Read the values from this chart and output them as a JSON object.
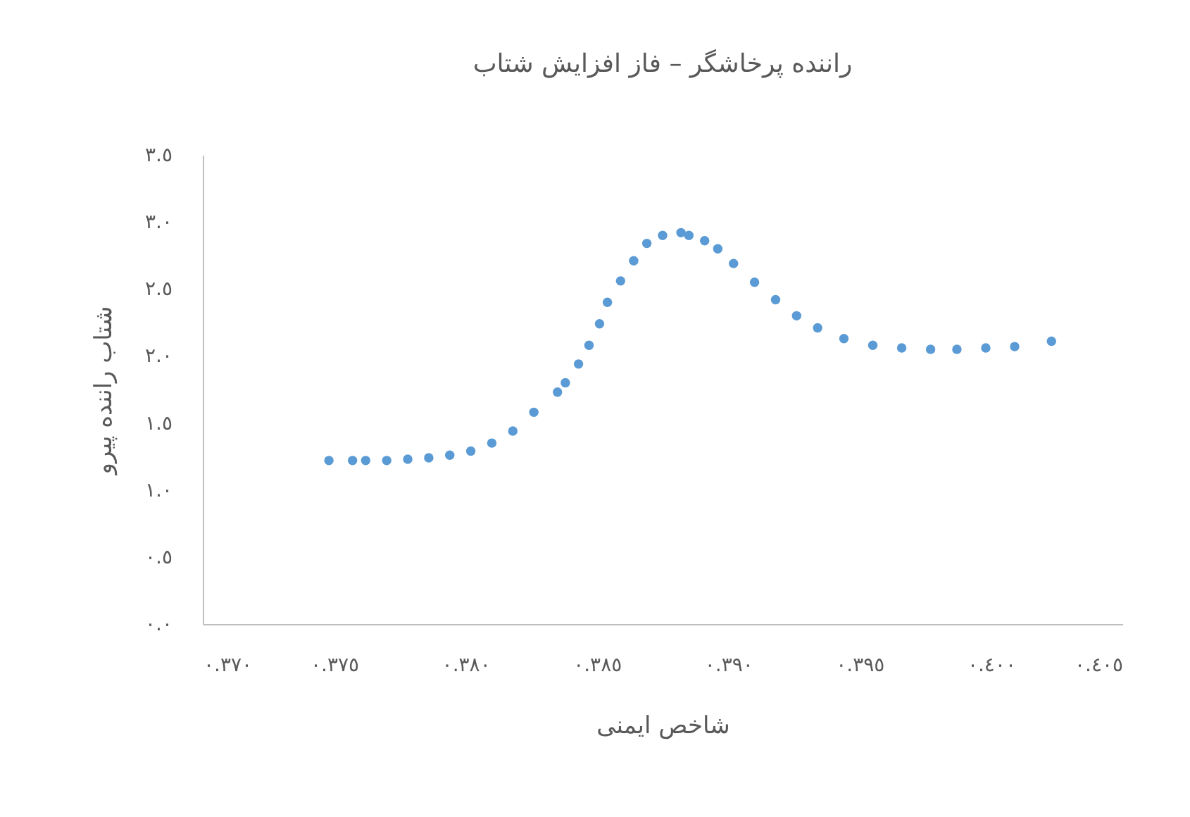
{
  "chart_data": {
    "type": "scatter",
    "title": "راننده پرخاشگر – فاز افزایش شتاب",
    "xlabel": "شاخص ایمنی",
    "ylabel": "شتاب راننده پیرو",
    "marker": "circle",
    "grid": false,
    "x": [
      0.3748,
      0.3757,
      0.3762,
      0.377,
      0.3778,
      0.3786,
      0.3794,
      0.3802,
      0.381,
      0.3818,
      0.3826,
      0.3835,
      0.3838,
      0.3843,
      0.3847,
      0.3851,
      0.3854,
      0.3859,
      0.3864,
      0.3869,
      0.3875,
      0.3882,
      0.3885,
      0.3891,
      0.3896,
      0.3902,
      0.391,
      0.3918,
      0.3926,
      0.3934,
      0.3944,
      0.3955,
      0.3966,
      0.3977,
      0.3987,
      0.3998,
      0.4009,
      0.4023
    ],
    "series": [
      {
        "color": "#5b9bd5",
        "values": [
          1.22,
          1.22,
          1.22,
          1.22,
          1.23,
          1.24,
          1.26,
          1.29,
          1.35,
          1.44,
          1.58,
          1.73,
          1.8,
          1.94,
          2.08,
          2.24,
          2.4,
          2.56,
          2.71,
          2.84,
          2.9,
          2.92,
          2.9,
          2.86,
          2.8,
          2.69,
          2.55,
          2.42,
          2.3,
          2.21,
          2.13,
          2.08,
          2.06,
          2.05,
          2.05,
          2.06,
          2.07,
          2.11
        ]
      }
    ],
    "xlim": [
      0.37,
      0.405
    ],
    "xticks": [
      {
        "value": 0.37,
        "label": "٠.٣٧٠"
      },
      {
        "value": 0.375,
        "label": "٠.٣٧٥"
      },
      {
        "value": 0.38,
        "label": "٠.٣٨٠"
      },
      {
        "value": 0.385,
        "label": "٠.٣٨٥"
      },
      {
        "value": 0.39,
        "label": "٠.٣٩٠"
      },
      {
        "value": 0.395,
        "label": "٠.٣٩٥"
      },
      {
        "value": 0.4,
        "label": "٠.٤٠٠"
      },
      {
        "value": 0.405,
        "label": "٠.٤٠٥"
      }
    ],
    "ylim": [
      0,
      3.5
    ],
    "yticks": [
      {
        "value": 0,
        "label": "٠.٠"
      },
      {
        "value": 0.5,
        "label": "٠.٥"
      },
      {
        "value": 1,
        "label": "١.٠"
      },
      {
        "value": 1.5,
        "label": "١.٥"
      },
      {
        "value": 2,
        "label": "٢.٠"
      },
      {
        "value": 2.5,
        "label": "٢.٥"
      },
      {
        "value": 3,
        "label": "٣.٠"
      },
      {
        "value": 3.5,
        "label": "٣.٥"
      }
    ]
  }
}
